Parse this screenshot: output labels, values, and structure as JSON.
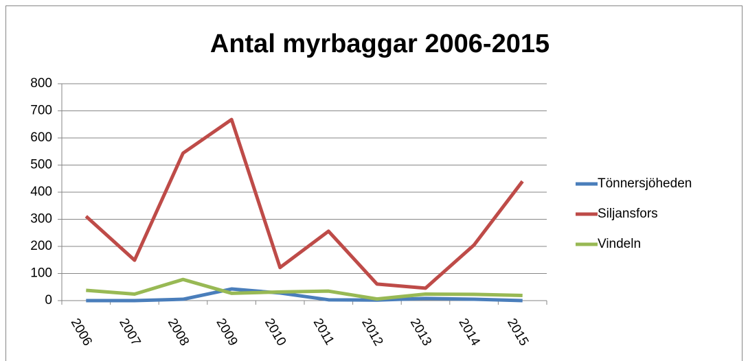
{
  "chart_data": {
    "type": "line",
    "title": "Antal myrbaggar 2006-2015",
    "categories": [
      "2006",
      "2007",
      "2008",
      "2009",
      "2010",
      "2011",
      "2012",
      "2013",
      "2014",
      "2015"
    ],
    "series": [
      {
        "name": "Tönnersjöheden",
        "color": "#4a7ebb",
        "values": [
          0,
          0,
          5,
          43,
          28,
          3,
          2,
          8,
          5,
          0
        ]
      },
      {
        "name": "Siljansfors",
        "color": "#be4b48",
        "values": [
          311,
          149,
          544,
          668,
          122,
          256,
          61,
          46,
          205,
          440
        ]
      },
      {
        "name": "Vindeln",
        "color": "#98b954",
        "values": [
          38,
          24,
          78,
          27,
          32,
          35,
          6,
          24,
          23,
          19
        ]
      }
    ],
    "ylim": [
      0,
      800
    ],
    "yticks": [
      0,
      100,
      200,
      300,
      400,
      500,
      600,
      700,
      800
    ],
    "grid": true,
    "legend": "right"
  }
}
